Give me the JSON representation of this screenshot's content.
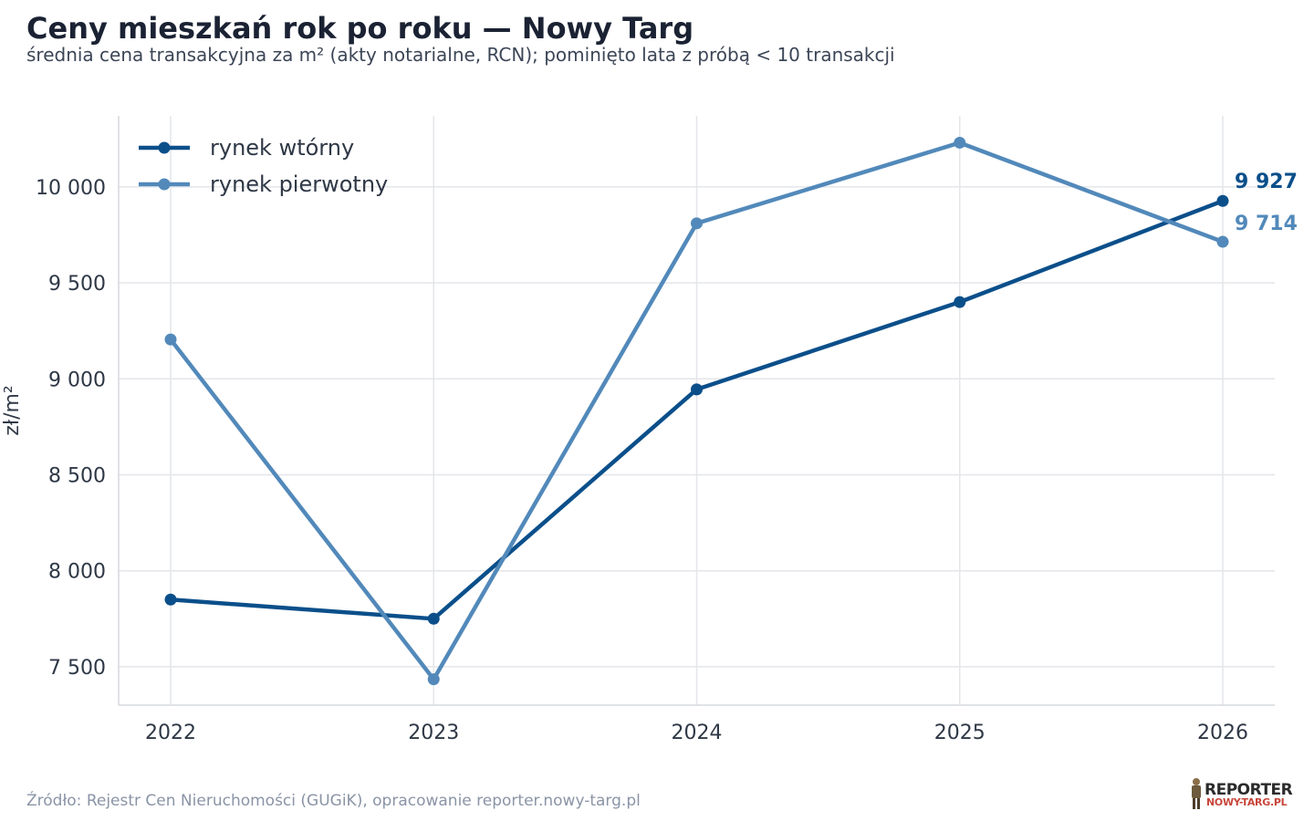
{
  "title": "Ceny mieszkań rok po roku — Nowy Targ",
  "subtitle": "średnia cena transakcyjna za m² (akty notarialne, RCN); pominięto lata z próbą < 10 transakcji",
  "source": "Źródło: Rejestr Cen Nieruchomości (GUGiK), opracowanie reporter.nowy-targ.pl",
  "logo": {
    "line1": "REPORTER",
    "line2": "NOWY-TARG.PL"
  },
  "chart_data": {
    "type": "line",
    "title": "Ceny mieszkań rok po roku — Nowy Targ",
    "ylabel": "zł/m²",
    "xlabel": "",
    "x": [
      2022,
      2023,
      2024,
      2025,
      2026
    ],
    "x_tick_labels": [
      "2022",
      "2023",
      "2024",
      "2025",
      "2026"
    ],
    "ylim": [
      7300,
      10370
    ],
    "y_ticks": [
      7500,
      8000,
      8500,
      9000,
      9500,
      10000
    ],
    "y_tick_labels": [
      "7 500",
      "8 000",
      "8 500",
      "9 000",
      "9 500",
      "10 000"
    ],
    "grid": true,
    "legend_position": "top-left",
    "series": [
      {
        "name": "rynek wtórny",
        "color": "#0b4f8a",
        "values": [
          7850,
          7750,
          8945,
          9400,
          9927
        ],
        "end_label": "9 927"
      },
      {
        "name": "rynek pierwotny",
        "color": "#5289ba",
        "values": [
          9205,
          7435,
          9810,
          10230,
          9714
        ],
        "end_label": "9 714"
      }
    ]
  }
}
